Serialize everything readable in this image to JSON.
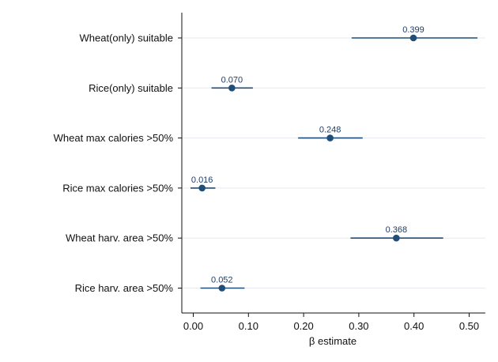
{
  "chart_data": {
    "type": "scatter",
    "subtype": "coefficient-plot",
    "xlabel": "β estimate",
    "xlim": [
      -0.02,
      0.53
    ],
    "xticks": [
      0.0,
      0.1,
      0.2,
      0.3,
      0.4,
      0.5
    ],
    "xtick_labels": [
      "0.00",
      "0.10",
      "0.20",
      "0.30",
      "0.40",
      "0.50"
    ],
    "grid": true,
    "color": "#1f4e79",
    "points": [
      {
        "label": "Wheat(only) suitable",
        "estimate": 0.399,
        "ci_low": 0.287,
        "ci_high": 0.515,
        "value_label": "0.399"
      },
      {
        "label": "Rice(only) suitable",
        "estimate": 0.07,
        "ci_low": 0.033,
        "ci_high": 0.108,
        "value_label": "0.070"
      },
      {
        "label": "Wheat max calories >50%",
        "estimate": 0.248,
        "ci_low": 0.19,
        "ci_high": 0.307,
        "value_label": "0.248"
      },
      {
        "label": "Rice max calories >50%",
        "estimate": 0.016,
        "ci_low": -0.005,
        "ci_high": 0.04,
        "value_label": "0.016"
      },
      {
        "label": "Wheat harv. area >50%",
        "estimate": 0.368,
        "ci_low": 0.285,
        "ci_high": 0.453,
        "value_label": "0.368"
      },
      {
        "label": "Rice harv. area >50%",
        "estimate": 0.052,
        "ci_low": 0.013,
        "ci_high": 0.093,
        "value_label": "0.052"
      }
    ]
  }
}
